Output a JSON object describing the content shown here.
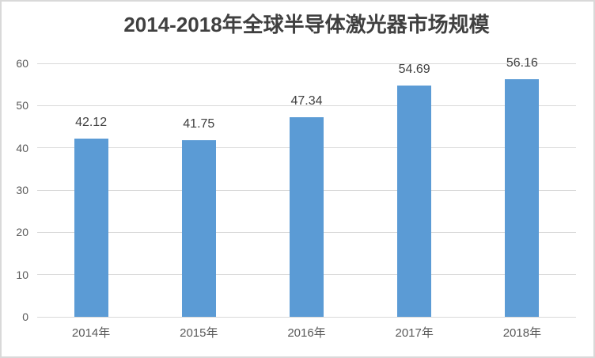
{
  "window": {
    "background": "#FFFFFF",
    "border_color": "#D9D9D9"
  },
  "chart_data": {
    "type": "bar",
    "title": "2014-2018年全球半导体激光器市场规模",
    "categories": [
      "2014年",
      "2015年",
      "2016年",
      "2017年",
      "2018年"
    ],
    "values": [
      42.12,
      41.75,
      47.34,
      54.69,
      56.16
    ],
    "data_labels": [
      "42.12",
      "41.75",
      "47.34",
      "54.69",
      "56.16"
    ],
    "yticks": [
      "0",
      "10",
      "20",
      "30",
      "40",
      "50",
      "60"
    ],
    "ytick_values": [
      0,
      10,
      20,
      30,
      40,
      50,
      60
    ],
    "ylim": [
      0,
      60
    ],
    "xlabel": "",
    "ylabel": "",
    "grid": true,
    "legend": false,
    "colors": {
      "bar": "#5B9BD5",
      "gridline": "#D9D9D9",
      "axis_text": "#595959",
      "data_label": "#404040",
      "title_text": "#404040"
    }
  }
}
